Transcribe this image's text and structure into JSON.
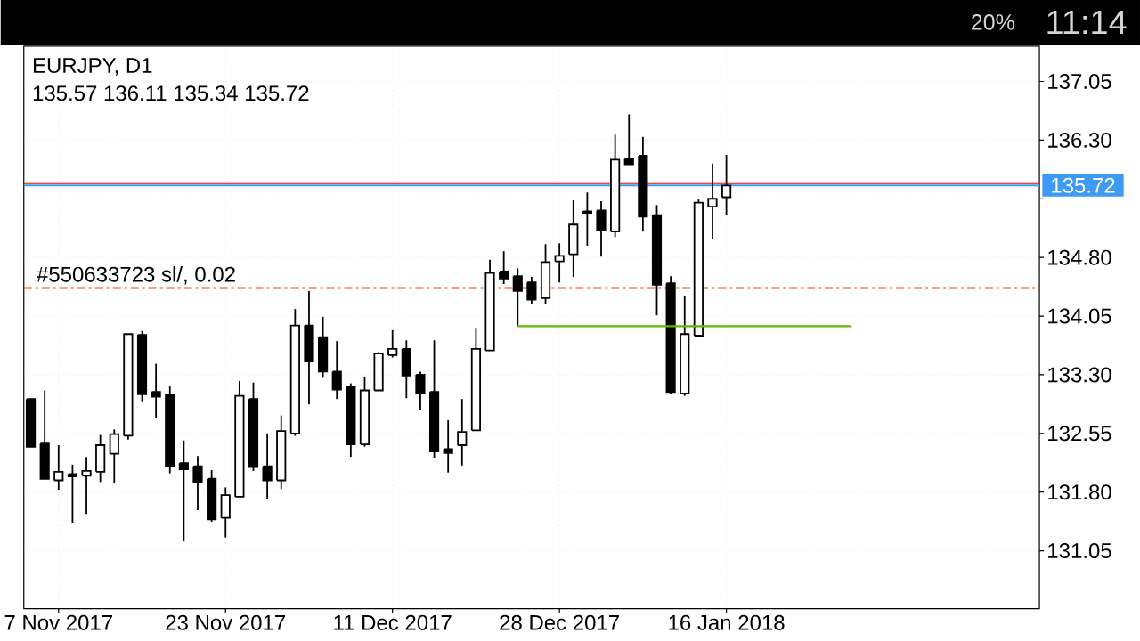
{
  "chart_data": {
    "type": "candlestick",
    "title": "EURJPY, D1",
    "subtitle": "135.57 136.11 135.34 135.72",
    "categories": [
      null,
      null,
      "7 Nov 2017",
      null,
      null,
      null,
      null,
      null,
      null,
      null,
      null,
      null,
      null,
      null,
      "23 Nov 2017",
      null,
      null,
      null,
      null,
      null,
      null,
      null,
      null,
      null,
      null,
      null,
      "11 Dec 2017",
      null,
      null,
      null,
      null,
      null,
      null,
      null,
      null,
      null,
      null,
      null,
      "28 Dec 2017",
      null,
      null,
      null,
      null,
      null,
      null,
      null,
      null,
      null,
      null,
      null,
      "16 Jan 2018",
      null,
      null,
      null,
      null,
      null,
      null,
      null,
      null,
      null,
      null,
      null,
      null,
      null,
      null,
      null,
      null,
      null,
      null,
      null,
      null,
      null,
      null
    ],
    "ohlc": [
      [
        132.99,
        132.99,
        132.38,
        132.38
      ],
      [
        132.42,
        133.1,
        131.97,
        131.97
      ],
      [
        131.95,
        132.4,
        131.83,
        132.06
      ],
      [
        132.03,
        132.15,
        131.4,
        132.0
      ],
      [
        132.01,
        132.25,
        131.52,
        132.07
      ],
      [
        132.06,
        132.53,
        131.93,
        132.4
      ],
      [
        132.29,
        132.6,
        131.92,
        132.54
      ],
      [
        132.52,
        133.82,
        132.47,
        133.82
      ],
      [
        133.81,
        133.86,
        132.96,
        133.05
      ],
      [
        133.08,
        133.44,
        132.75,
        133.02
      ],
      [
        133.05,
        133.15,
        132.04,
        132.13
      ],
      [
        132.17,
        132.46,
        131.17,
        132.09
      ],
      [
        132.13,
        132.26,
        131.57,
        131.93
      ],
      [
        131.97,
        132.08,
        131.42,
        131.45
      ],
      [
        131.47,
        131.86,
        131.22,
        131.76
      ],
      [
        131.74,
        133.22,
        131.74,
        133.03
      ],
      [
        132.99,
        133.2,
        132.07,
        132.12
      ],
      [
        132.13,
        132.55,
        131.71,
        131.95
      ],
      [
        131.95,
        132.78,
        131.84,
        132.58
      ],
      [
        132.55,
        134.14,
        132.52,
        133.93
      ],
      [
        133.93,
        134.37,
        132.92,
        133.47
      ],
      [
        133.78,
        134.04,
        133.26,
        133.34
      ],
      [
        133.34,
        133.73,
        132.99,
        133.11
      ],
      [
        133.14,
        133.19,
        132.25,
        132.41
      ],
      [
        132.41,
        133.27,
        132.38,
        133.1
      ],
      [
        133.1,
        133.59,
        133.1,
        133.57
      ],
      [
        133.55,
        133.87,
        133.52,
        133.63
      ],
      [
        133.63,
        133.74,
        133.0,
        133.29
      ],
      [
        133.3,
        133.34,
        132.85,
        133.06
      ],
      [
        133.08,
        133.74,
        132.23,
        132.32
      ],
      [
        132.35,
        132.72,
        132.05,
        132.3
      ],
      [
        132.4,
        132.99,
        132.14,
        132.57
      ],
      [
        132.59,
        133.9,
        132.59,
        133.63
      ],
      [
        133.61,
        134.77,
        133.61,
        134.6
      ],
      [
        134.62,
        134.88,
        134.46,
        134.53
      ],
      [
        134.56,
        134.66,
        133.92,
        134.37
      ],
      [
        134.48,
        134.55,
        134.21,
        134.26
      ],
      [
        134.28,
        134.97,
        134.21,
        134.74
      ],
      [
        134.75,
        134.98,
        134.48,
        134.82
      ],
      [
        134.84,
        135.53,
        134.55,
        135.22
      ],
      [
        135.39,
        135.63,
        134.95,
        135.37
      ],
      [
        135.4,
        135.52,
        134.81,
        135.15
      ],
      [
        135.13,
        136.37,
        135.06,
        136.05
      ],
      [
        136.06,
        136.63,
        135.99,
        135.99
      ],
      [
        136.1,
        136.34,
        135.13,
        135.32
      ],
      [
        135.34,
        135.47,
        134.06,
        134.45
      ],
      [
        134.47,
        134.56,
        133.05,
        133.08
      ],
      [
        133.06,
        134.31,
        133.03,
        133.82
      ],
      [
        133.8,
        135.54,
        133.8,
        135.5
      ],
      [
        135.45,
        136.0,
        135.03,
        135.55
      ],
      [
        135.57,
        136.11,
        135.34,
        135.72
      ],
      null,
      null,
      null,
      null,
      null,
      null,
      null,
      null,
      null,
      null,
      null,
      null,
      null,
      null,
      null,
      null,
      null,
      null,
      null,
      null,
      null,
      null
    ],
    "color": "#000000",
    "series": [
      {
        "type": "line",
        "color": "#64b400",
        "values": [
          null,
          null,
          null,
          null,
          null,
          null,
          null,
          null,
          null,
          null,
          null,
          null,
          null,
          null,
          null,
          null,
          null,
          null,
          null,
          null,
          null,
          null,
          null,
          null,
          null,
          null,
          null,
          null,
          null,
          null,
          null,
          null,
          null,
          null,
          null,
          133.92,
          133.92,
          133.92,
          133.92,
          133.92,
          133.92,
          133.92,
          133.92,
          133.92,
          133.92,
          133.92,
          133.92,
          133.92,
          133.92,
          133.92,
          133.92,
          133.92,
          133.92,
          133.92,
          133.92,
          133.92,
          133.92,
          133.92,
          133.92,
          133.92,
          null,
          null,
          null,
          null,
          null,
          null,
          null,
          null,
          null,
          null,
          null,
          null,
          null
        ]
      }
    ],
    "ylim": [
      130.31,
      137.5
    ],
    "yticks": [
      131.05,
      {
        "value": 131.8,
        "label": "131.80"
      },
      132.55,
      {
        "value": 133.3,
        "label": "133.30"
      },
      134.05,
      {
        "value": 134.8,
        "label": "134.80"
      },
      {
        "value": 135.55,
        "label": null
      },
      {
        "value": 136.3,
        "label": "136.30"
      },
      137.05
    ],
    "grid": true,
    "ref_lines": [
      {
        "axis": "y",
        "value": 135.75,
        "color": "#ff0000"
      },
      {
        "axis": "y",
        "value": 135.72,
        "label": "135.72",
        "color": "#3d9bf5"
      },
      {
        "axis": "y",
        "value": 134.41,
        "label": "#550633723 sl/, 0.02",
        "color": "#ff4500",
        "line_style": "dashdot"
      }
    ],
    "annotations": [
      "20%",
      "11:14"
    ]
  }
}
